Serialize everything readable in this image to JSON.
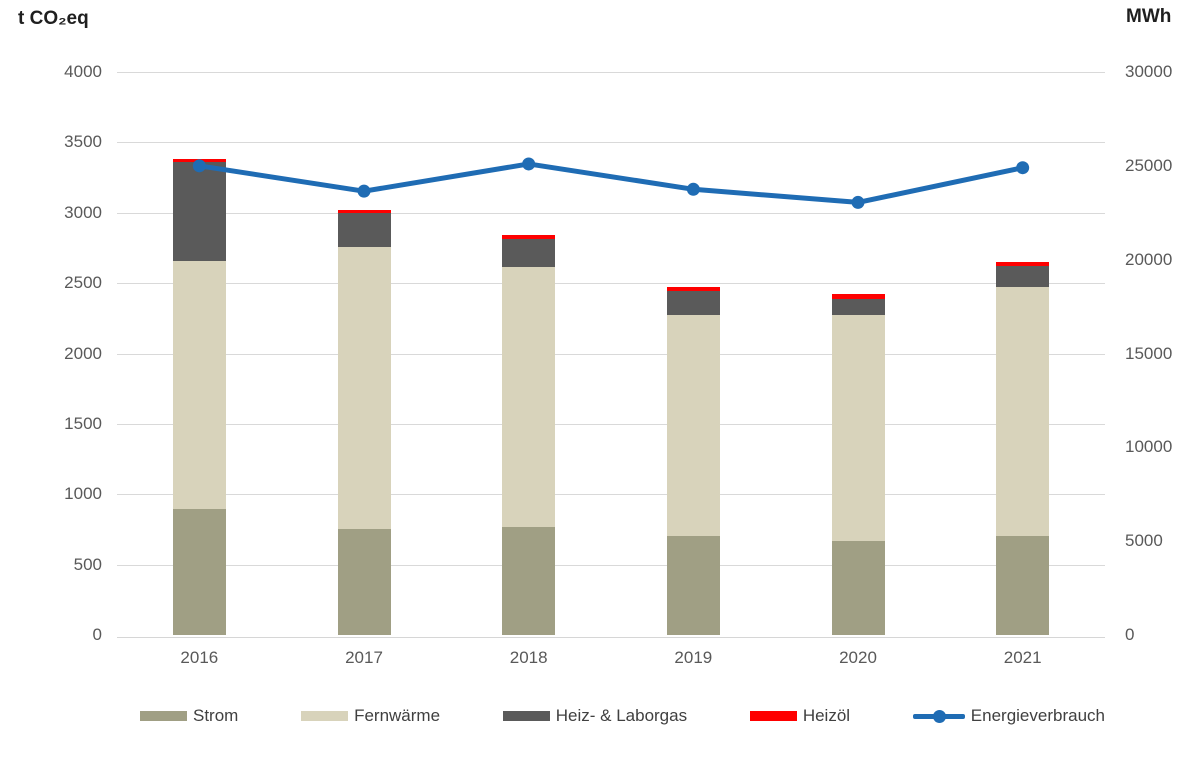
{
  "chart_data": {
    "type": "combo-stacked-bar-line",
    "categories": [
      "2016",
      "2017",
      "2018",
      "2019",
      "2020",
      "2021"
    ],
    "bar_series": [
      {
        "name": "Strom",
        "color": "#a09f84",
        "values": [
          895,
          755,
          765,
          700,
          670,
          700
        ]
      },
      {
        "name": "Fernwärme",
        "color": "#d8d3bb",
        "values": [
          1765,
          2000,
          1850,
          1575,
          1600,
          1775
        ]
      },
      {
        "name": "Heiz- & Laborgas",
        "color": "#5a5a5a",
        "values": [
          700,
          245,
          200,
          170,
          120,
          150
        ]
      },
      {
        "name": "Heizöl",
        "color": "#fe0000",
        "values": [
          25,
          20,
          25,
          25,
          30,
          25
        ]
      }
    ],
    "line_series": {
      "name": "Energieverbrauch",
      "color": "#1f6cb4",
      "axis": "right",
      "values": [
        25000,
        23650,
        25100,
        23750,
        23050,
        24900
      ]
    },
    "left_axis": {
      "title": "t CO₂eq",
      "min": 0,
      "max": 4000,
      "step": 500,
      "ticks": [
        "4000",
        "3500",
        "3000",
        "2500",
        "2000",
        "1500",
        "1000",
        "500",
        "0"
      ]
    },
    "right_axis": {
      "title": "MWh",
      "min": 0,
      "max": 30000,
      "step": 5000,
      "ticks": [
        "30000",
        "25000",
        "20000",
        "15000",
        "10000",
        "5000",
        "0"
      ]
    },
    "grid": true,
    "gridline_color": "#d9d9d9",
    "legend_position": "bottom"
  }
}
